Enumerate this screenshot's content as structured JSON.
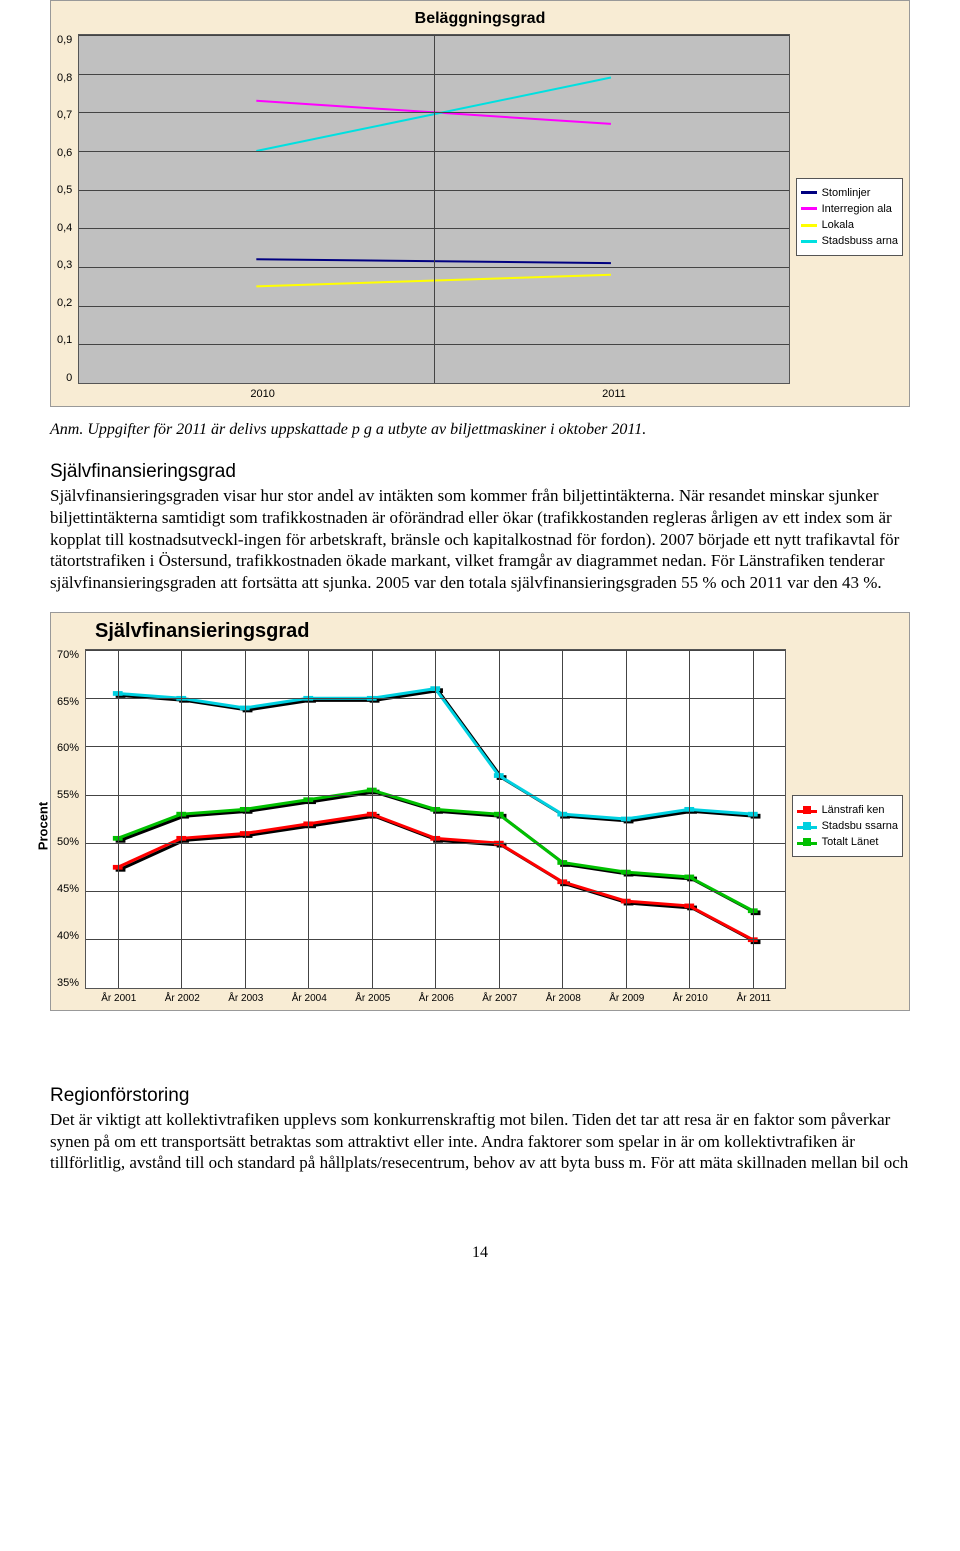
{
  "chart1": {
    "title": "Beläggningsgrad",
    "title_fontsize": 13,
    "type": "line",
    "background_color": "#f8ecd4",
    "plot_background_color": "#c0c0c0",
    "grid_color": "#444444",
    "ylim": [
      0,
      0.9
    ],
    "ytick_step": 0.1,
    "y_ticks": [
      "0,9",
      "0,8",
      "0,7",
      "0,6",
      "0,5",
      "0,4",
      "0,3",
      "0,2",
      "0,1",
      "0"
    ],
    "categories": [
      "2010",
      "2011"
    ],
    "series": [
      {
        "name": "Stomlinjer",
        "color": "#000080",
        "values": [
          0.32,
          0.31
        ],
        "width": 2
      },
      {
        "name": "Interregion\nala",
        "color": "#ff00ff",
        "values": [
          0.73,
          0.67
        ],
        "width": 2
      },
      {
        "name": "Lokala",
        "color": "#ffff00",
        "values": [
          0.25,
          0.28
        ],
        "width": 2
      },
      {
        "name": "Stadsbuss\narna",
        "color": "#00e0e0",
        "values": [
          0.6,
          0.79
        ],
        "width": 2
      }
    ],
    "legend_labels": [
      "Stomlinjer",
      "Interregion ala",
      "Lokala",
      "Stadsbuss arna"
    ],
    "axis_font": "Arial",
    "axis_fontsize": 11
  },
  "caption1": "Anm. Uppgifter för 2011 är delivs uppskattade p g a utbyte av biljettmaskiner i oktober 2011.",
  "section1_title": "Självfinansieringsgrad",
  "section1_body": "Självfinansieringsgraden visar hur stor andel av intäkten som kommer från biljettintäkterna. När resandet minskar sjunker biljettintäkterna samtidigt som trafikkostnaden är oförändrad eller ökar (trafikkostanden regleras årligen av ett index som är kopplat till kostnadsutveckl-ingen för arbetskraft, bränsle och kapitalkostnad för fordon). 2007 började ett nytt trafikavtal för tätortstrafiken i Östersund, trafikkostnaden ökade markant, vilket framgår av diagrammet nedan. För Länstrafiken tenderar självfinansieringsgraden att fortsätta att sjunka. 2005 var den totala självfinansieringsgraden 55 % och 2011 var den 43 %.",
  "chart2": {
    "title": "Självfinansieringsgrad",
    "title_fontsize": 20,
    "type": "line",
    "background_color": "#f8ecd4",
    "plot_background_color": "#ffffff",
    "grid_color": "#444444",
    "ylabel": "Procent",
    "ylim": [
      35,
      70
    ],
    "ytick_step": 5,
    "y_ticks": [
      "70%",
      "65%",
      "60%",
      "55%",
      "50%",
      "45%",
      "40%",
      "35%"
    ],
    "categories": [
      "År 2001",
      "År 2002",
      "År 2003",
      "År 2004",
      "År 2005",
      "År 2006",
      "År 2007",
      "År 2008",
      "År 2009",
      "År 2010",
      "År 2011"
    ],
    "series": [
      {
        "name": "Länstrafi\nken",
        "color": "#ff0000",
        "width": 3,
        "marker": "square",
        "marker_size": 9,
        "shadow": true,
        "values": [
          47.5,
          50.5,
          51.0,
          52.0,
          53.0,
          50.5,
          50.0,
          46.0,
          44.0,
          43.5,
          40.0
        ]
      },
      {
        "name": "Stadsbu\nssarna",
        "color": "#00d0e0",
        "width": 3,
        "marker": "square",
        "marker_size": 9,
        "shadow": true,
        "values": [
          65.5,
          65.0,
          64.0,
          65.0,
          65.0,
          66.0,
          57.0,
          53.0,
          52.5,
          53.5,
          53.0
        ]
      },
      {
        "name": "Totalt\nLänet",
        "color": "#00c000",
        "width": 3,
        "marker": "square",
        "marker_size": 9,
        "shadow": true,
        "values": [
          50.5,
          53.0,
          53.5,
          54.5,
          55.5,
          53.5,
          53.0,
          48.0,
          47.0,
          46.5,
          43.0
        ]
      }
    ],
    "legend_labels": [
      "Länstrafi ken",
      "Stadsbu ssarna",
      "Totalt Länet"
    ],
    "axis_font": "Arial",
    "axis_fontsize": 11
  },
  "section2_title": "Regionförstoring",
  "section2_body": "Det är viktigt att kollektivtrafiken upplevs som konkurrenskraftig mot bilen. Tiden det tar att resa är en faktor som påverkar synen på om ett transportsätt betraktas som attraktivt eller inte. Andra faktorer som spelar in är om kollektivtrafiken är tillförlitlig, avstånd till och standard på hållplats/resecentrum, behov av att byta buss m. För att mäta skillnaden mellan bil och",
  "page_number": "14"
}
